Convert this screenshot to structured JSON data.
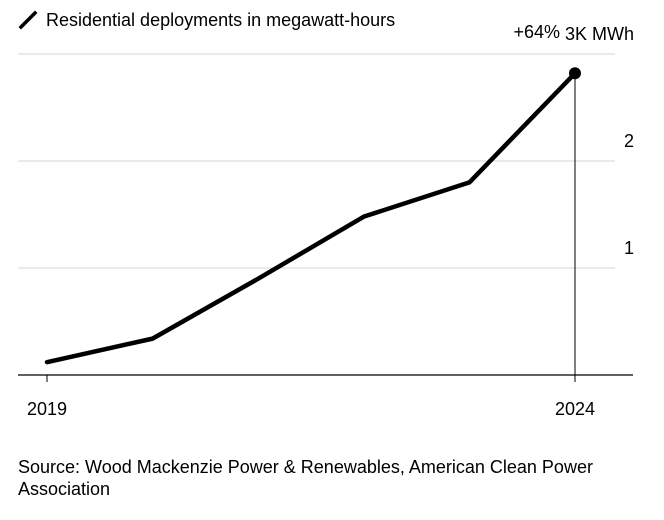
{
  "chart_data": {
    "type": "line",
    "series": [
      {
        "name": "Residential deployments in megawatt-hours",
        "x": [
          2019,
          2020,
          2021,
          2022,
          2023,
          2024
        ],
        "values": [
          0.12,
          0.34,
          0.9,
          1.48,
          1.8,
          2.82
        ]
      }
    ],
    "x_tick_labels": [
      "2019",
      "2024"
    ],
    "y_tick_labels": [
      "1",
      "2"
    ],
    "y_top_label": "3K MWh",
    "ylim": [
      0,
      3
    ],
    "xlim": [
      2019,
      2024
    ],
    "annotation": "+64%",
    "line_color": "#000000",
    "grid": true,
    "legend_position": "top-left"
  },
  "source": "Source: Wood Mackenzie Power & Renewables, American Clean Power Association"
}
